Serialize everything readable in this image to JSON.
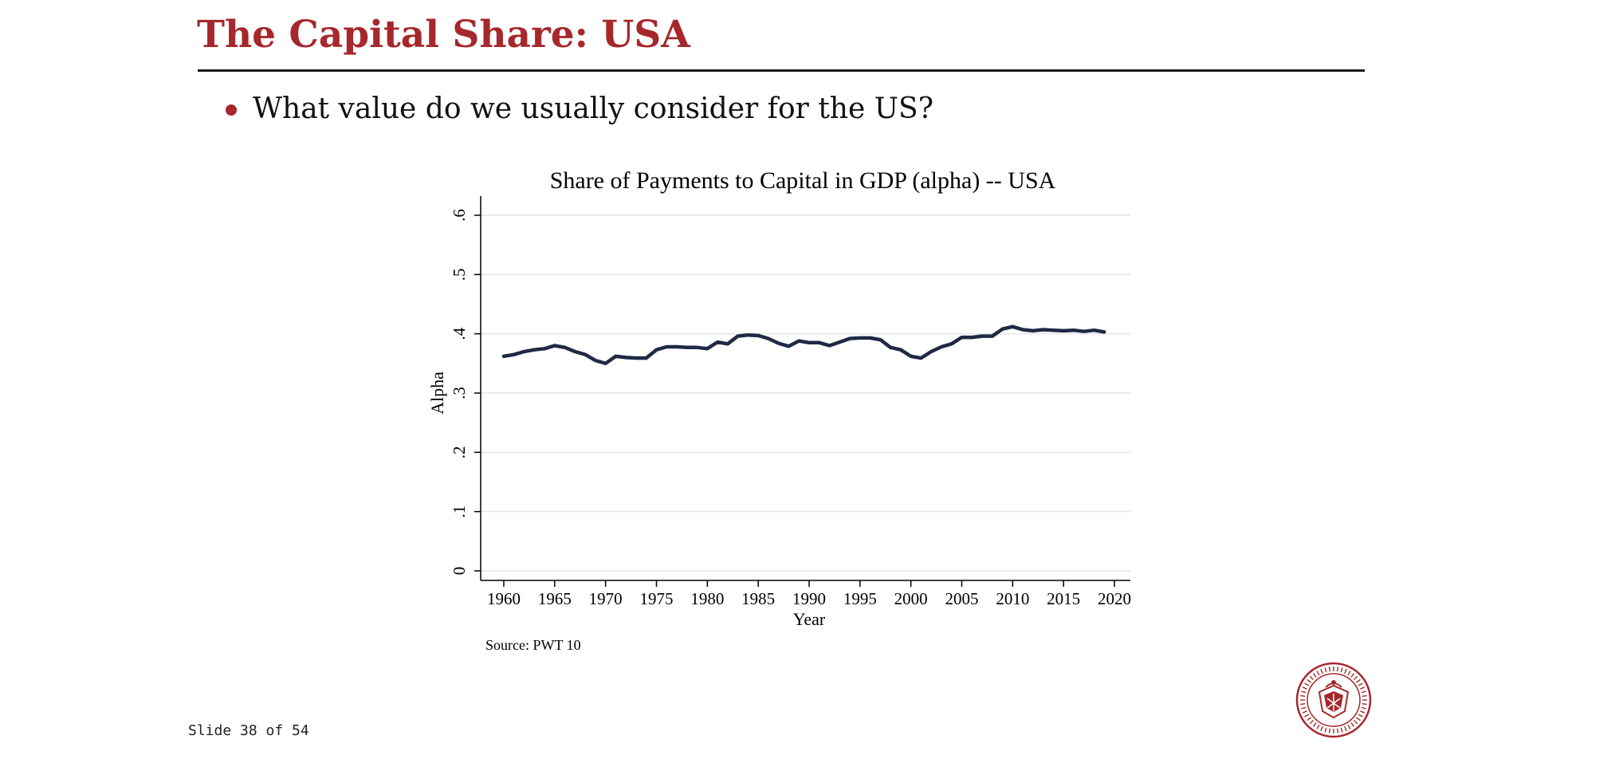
{
  "slide": {
    "title": "The Capital Share: USA",
    "bullet": "What value do we usually consider for the US?",
    "counter": "Slide 38 of 54",
    "accent_color": "#a6282c",
    "logo_icon": "university-seal-icon"
  },
  "chart_data": {
    "type": "line",
    "title": "Share of Payments to Capital in GDP (alpha) -- USA",
    "xlabel": "Year",
    "ylabel": "Alpha",
    "note": "Source: PWT 10",
    "xlim": [
      1960,
      2020
    ],
    "ylim": [
      0,
      0.6
    ],
    "x_ticks": [
      1960,
      1965,
      1970,
      1975,
      1980,
      1985,
      1990,
      1995,
      2000,
      2005,
      2010,
      2015,
      2020
    ],
    "x_tick_labels": [
      "1960",
      "1965",
      "1970",
      "1975",
      "1980",
      "1985",
      "1990",
      "1995",
      "2000",
      "2005",
      "2010",
      "2015",
      "2020"
    ],
    "y_ticks": [
      0,
      0.1,
      0.2,
      0.3,
      0.4,
      0.5,
      0.6
    ],
    "y_tick_labels": [
      "0",
      ".1",
      ".2",
      ".3",
      ".4",
      ".5",
      ".6"
    ],
    "grid": true,
    "line_color": "#1f2a44",
    "series": [
      {
        "x": [
          1960,
          1961,
          1962,
          1963,
          1964,
          1965,
          1966,
          1967,
          1968,
          1969,
          1970,
          1971,
          1972,
          1973,
          1974,
          1975,
          1976,
          1977,
          1978,
          1979,
          1980,
          1981,
          1982,
          1983,
          1984,
          1985,
          1986,
          1987,
          1988,
          1989,
          1990,
          1991,
          1992,
          1993,
          1994,
          1995,
          1996,
          1997,
          1998,
          1999,
          2000,
          2001,
          2002,
          2003,
          2004,
          2005,
          2006,
          2007,
          2008,
          2009,
          2010,
          2011,
          2012,
          2013,
          2014,
          2015,
          2016,
          2017,
          2018,
          2019
        ],
        "values": [
          0.362,
          0.365,
          0.37,
          0.373,
          0.375,
          0.38,
          0.377,
          0.37,
          0.365,
          0.355,
          0.35,
          0.362,
          0.36,
          0.359,
          0.359,
          0.373,
          0.378,
          0.378,
          0.377,
          0.377,
          0.375,
          0.386,
          0.383,
          0.396,
          0.398,
          0.397,
          0.392,
          0.384,
          0.379,
          0.388,
          0.385,
          0.385,
          0.38,
          0.386,
          0.392,
          0.393,
          0.393,
          0.39,
          0.377,
          0.373,
          0.362,
          0.359,
          0.37,
          0.378,
          0.383,
          0.394,
          0.394,
          0.396,
          0.396,
          0.408,
          0.412,
          0.407,
          0.405,
          0.407,
          0.406,
          0.405,
          0.406,
          0.404,
          0.406,
          0.403
        ]
      }
    ]
  }
}
